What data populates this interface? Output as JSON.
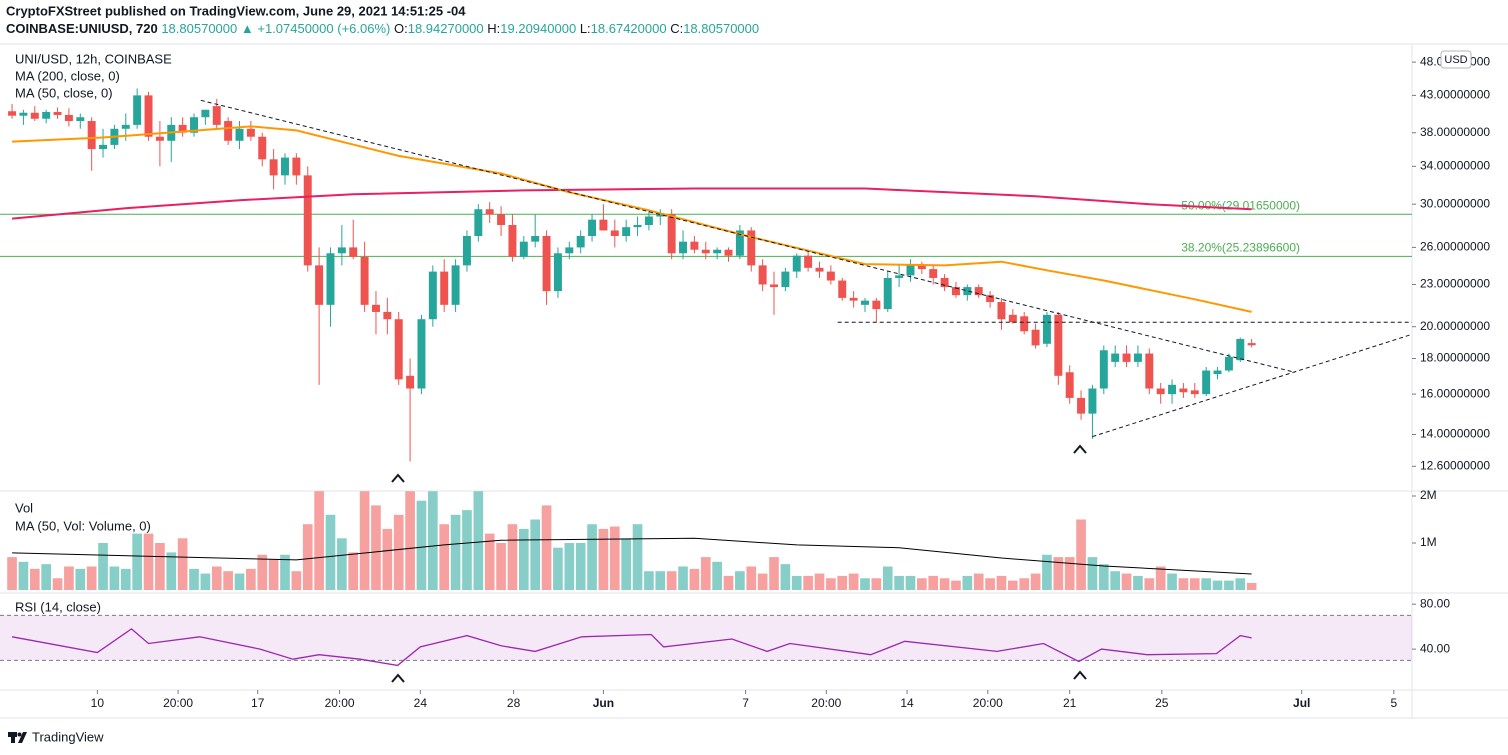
{
  "header": {
    "publisher": "CryptoFXStreet published on TradingView.com, June 29, 2021 14:51:25 -04",
    "symbol": "COINBASE:UNIUSD, 720",
    "last": "18.80570000",
    "change": "▲ +1.07450000 (+6.06%)",
    "ohlc": [
      {
        "label": "O:",
        "value": "18.94270000"
      },
      {
        "label": "H:",
        "value": "19.20940000"
      },
      {
        "label": "L:",
        "value": "18.67420000"
      },
      {
        "label": "C:",
        "value": "18.80570000"
      }
    ]
  },
  "footer": {
    "brand": "TradingView"
  },
  "chart_data": [
    {
      "type": "candlestick",
      "title": "UNI/USD, 12h, COINBASE",
      "currency": "USD",
      "log_scale": true,
      "up_color": "#26a69a",
      "down_color": "#ef5350",
      "xlim": [
        -1.06,
        123.1
      ],
      "ylim": [
        11.65,
        50.8
      ],
      "yticks": [
        {
          "value": 48,
          "label": "48.00000000"
        },
        {
          "value": 43,
          "label": "43.00000000"
        },
        {
          "value": 38,
          "label": "38.00000000"
        },
        {
          "value": 34,
          "label": "34.00000000"
        },
        {
          "value": 30,
          "label": "30.00000000"
        },
        {
          "value": 26,
          "label": "26.00000000"
        },
        {
          "value": 23,
          "label": "23.00000000"
        },
        {
          "value": 20,
          "label": "20.00000000"
        },
        {
          "value": 18,
          "label": "18.00000000"
        },
        {
          "value": 16,
          "label": "16.00000000"
        },
        {
          "value": 14,
          "label": "14.00000000"
        },
        {
          "value": 12.6,
          "label": "12.60000000"
        }
      ],
      "open": [
        40.8,
        40.2,
        40.6,
        39.8,
        40.7,
        40.3,
        39.5,
        39.5,
        36.0,
        36.5,
        38.5,
        39.0,
        43.0,
        37.5,
        37.0,
        39.0,
        38.0,
        40.0,
        41.5,
        39.5,
        37.0,
        38.5,
        37.5,
        34.8,
        33.0,
        35.0,
        33.0,
        24.5,
        21.5,
        25.5,
        26.0,
        25.2,
        21.5,
        21.0,
        20.5,
        17.0,
        16.3,
        20.5,
        24.0,
        21.5,
        24.5,
        27.0,
        29.5,
        29.0,
        28.0,
        25.2,
        26.5,
        27.0,
        22.5,
        25.5,
        26.0,
        27.0,
        28.5,
        27.5,
        27.0,
        27.8,
        28.0,
        28.8,
        29.0,
        25.5,
        26.5,
        25.8,
        25.5,
        25.8,
        25.3,
        27.5,
        24.5,
        23.0,
        22.8,
        24.0,
        25.3,
        24.3,
        24.0,
        23.3,
        22.0,
        21.5,
        21.8,
        21.2,
        23.5,
        23.7,
        24.5,
        24.2,
        23.5,
        22.8,
        22.2,
        22.8,
        22.2,
        21.7,
        20.8,
        20.7,
        19.8,
        18.9,
        20.8,
        17.2,
        15.8,
        15.0,
        16.3,
        17.8,
        18.3,
        17.8,
        18.3,
        16.3,
        16.0,
        16.3,
        16.2,
        16.0,
        17.1,
        17.3,
        17.9,
        18.9427
      ],
      "high": [
        41.8,
        41.0,
        41.5,
        41.0,
        41.3,
        41.2,
        40.5,
        40.0,
        38.5,
        39.0,
        40.5,
        44.0,
        43.5,
        39.5,
        40.0,
        40.0,
        40.5,
        41.0,
        42.5,
        40.0,
        39.5,
        39.5,
        38.0,
        36.0,
        35.5,
        35.5,
        34.0,
        26.0,
        26.0,
        28.0,
        28.5,
        26.5,
        22.5,
        22.0,
        21.0,
        18.0,
        20.8,
        24.5,
        25.0,
        25.0,
        27.5,
        30.0,
        30.2,
        29.8,
        29.0,
        27.0,
        29.0,
        27.5,
        26.0,
        26.5,
        27.5,
        29.0,
        30.0,
        28.5,
        28.5,
        28.8,
        29.5,
        29.5,
        29.5,
        27.5,
        27.0,
        26.5,
        26.0,
        26.0,
        28.0,
        27.8,
        25.0,
        24.0,
        24.3,
        25.5,
        25.8,
        24.8,
        24.5,
        23.5,
        22.5,
        22.0,
        22.0,
        24.0,
        24.5,
        25.0,
        24.8,
        24.5,
        23.8,
        23.2,
        23.0,
        23.0,
        22.5,
        22.0,
        21.2,
        21.0,
        20.2,
        21.0,
        21.0,
        17.6,
        16.2,
        16.5,
        18.8,
        18.8,
        18.8,
        18.8,
        18.6,
        16.6,
        16.8,
        16.6,
        16.6,
        17.5,
        17.5,
        18.3,
        19.3,
        19.2094
      ],
      "low": [
        39.8,
        39.0,
        39.5,
        39.2,
        39.8,
        38.8,
        38.5,
        33.5,
        35.0,
        36.0,
        37.0,
        38.5,
        37.0,
        34.0,
        34.5,
        37.5,
        37.5,
        39.0,
        38.5,
        36.5,
        36.0,
        37.0,
        34.0,
        31.5,
        32.0,
        32.0,
        24.0,
        16.5,
        20.0,
        24.5,
        25.0,
        21.0,
        19.5,
        19.5,
        16.5,
        12.8,
        16.0,
        20.0,
        21.0,
        21.0,
        24.0,
        26.5,
        28.2,
        27.0,
        24.8,
        25.0,
        26.0,
        21.5,
        22.0,
        25.0,
        25.5,
        26.5,
        27.5,
        26.0,
        26.5,
        27.0,
        27.5,
        28.0,
        25.0,
        25.0,
        25.5,
        25.0,
        25.0,
        24.8,
        25.0,
        24.0,
        22.5,
        20.8,
        22.5,
        23.5,
        24.0,
        23.5,
        23.0,
        21.8,
        21.3,
        21.0,
        20.3,
        21.0,
        22.8,
        23.2,
        23.8,
        23.0,
        22.5,
        22.0,
        21.8,
        22.0,
        21.3,
        19.8,
        20.2,
        19.5,
        18.6,
        18.7,
        16.5,
        15.5,
        14.7,
        13.8,
        16.0,
        17.5,
        17.5,
        17.5,
        16.0,
        15.5,
        15.5,
        15.8,
        15.8,
        15.9,
        16.8,
        17.2,
        17.8,
        18.6742
      ],
      "close": [
        40.2,
        40.6,
        39.8,
        40.7,
        40.3,
        39.5,
        40.0,
        36.0,
        36.5,
        38.5,
        39.0,
        43.0,
        37.5,
        37.0,
        39.0,
        38.0,
        40.0,
        41.0,
        39.0,
        37.0,
        38.5,
        37.5,
        34.8,
        33.0,
        35.0,
        33.0,
        24.5,
        21.5,
        25.5,
        26.0,
        25.2,
        21.5,
        21.0,
        20.5,
        16.8,
        16.3,
        20.5,
        24.0,
        21.5,
        24.5,
        27.0,
        29.5,
        29.0,
        28.0,
        25.2,
        26.5,
        27.0,
        22.5,
        25.5,
        26.0,
        27.0,
        28.5,
        27.5,
        27.0,
        27.8,
        28.0,
        28.8,
        29.0,
        25.5,
        26.5,
        25.8,
        25.5,
        25.8,
        25.3,
        27.5,
        24.5,
        23.0,
        22.8,
        24.0,
        25.3,
        24.3,
        24.0,
        23.3,
        22.0,
        21.8,
        21.8,
        21.2,
        23.5,
        23.7,
        24.5,
        24.2,
        23.5,
        22.8,
        22.2,
        22.8,
        22.2,
        21.7,
        20.5,
        20.3,
        19.7,
        18.8,
        20.8,
        17.0,
        15.8,
        15.0,
        16.3,
        18.5,
        18.3,
        17.8,
        18.3,
        16.3,
        16.0,
        16.5,
        16.1,
        16.0,
        17.3,
        17.3,
        18.1,
        19.2,
        18.8057
      ],
      "series": [
        {
          "name": "MA (200, close, 0)",
          "color": "#e91e63",
          "x": [
            0,
            10,
            20,
            30,
            45,
            60,
            75,
            90,
            100,
            109
          ],
          "values": [
            28.6,
            29.6,
            30.4,
            31.0,
            31.4,
            31.6,
            31.6,
            30.8,
            30.0,
            29.5
          ]
        },
        {
          "name": "MA (50, close, 0)",
          "color": "#ff9800",
          "x": [
            0,
            8,
            21,
            25,
            34,
            43,
            49,
            56,
            65,
            75,
            82,
            87,
            91,
            96,
            104,
            109
          ],
          "values": [
            36.9,
            37.4,
            38.8,
            38.3,
            35.2,
            33.2,
            31.2,
            29.4,
            26.9,
            24.6,
            24.5,
            24.8,
            24.1,
            23.3,
            21.9,
            21.0
          ]
        }
      ],
      "fib_levels": [
        {
          "label": "50.00%(29.01650000)",
          "value": 29.0165
        },
        {
          "label": "38.20%(25.23896600)",
          "value": 25.238966
        }
      ],
      "fib_color": "#4caf50",
      "trendlines": [
        {
          "x": [
            16.6,
            112.8
          ],
          "values": [
            42.3,
            17.2
          ]
        },
        {
          "x": [
            95,
            123.1
          ],
          "values": [
            13.9,
            19.5
          ]
        },
        {
          "x": [
            72.6,
            123.1
          ],
          "values": [
            20.3,
            20.3
          ]
        }
      ]
    },
    {
      "type": "bar",
      "title": "Vol",
      "xlim": [
        -1.06,
        123.1
      ],
      "ylim": [
        0,
        2085000
      ],
      "yticks": [
        {
          "value": 1000000,
          "label": "1M"
        },
        {
          "value": 2000000,
          "label": "2M"
        }
      ],
      "values": [
        700000,
        600000,
        450000,
        550000,
        250000,
        500000,
        450000,
        500000,
        1000000,
        500000,
        450000,
        1200000,
        1200000,
        1000000,
        800000,
        1100000,
        450000,
        350000,
        500000,
        400000,
        350000,
        450000,
        750000,
        650000,
        750000,
        400000,
        1400000,
        2100000,
        1600000,
        1100000,
        800000,
        2100000,
        1800000,
        1300000,
        1600000,
        2100000,
        1900000,
        2100000,
        1400000,
        1600000,
        1700000,
        2100000,
        1200000,
        1000000,
        1400000,
        1300000,
        1500000,
        1800000,
        900000,
        1000000,
        1000000,
        1400000,
        1300000,
        1350000,
        1100000,
        1400000,
        400000,
        400000,
        400000,
        500000,
        450000,
        700000,
        600000,
        300000,
        400000,
        500000,
        350000,
        700000,
        550000,
        300000,
        300000,
        350000,
        250000,
        300000,
        350000,
        250000,
        250000,
        500000,
        300000,
        300000,
        250000,
        300000,
        250000,
        200000,
        300000,
        350000,
        250000,
        300000,
        200000,
        250000,
        350000,
        750000,
        700000,
        700000,
        1500000,
        700000,
        550000,
        400000,
        350000,
        300000,
        250000,
        500000,
        350000,
        250000,
        250000,
        250000,
        200000,
        200000,
        250000,
        150000
      ],
      "series": [
        {
          "name": "MA (50, Vol: Volume, 0)",
          "color": "#000000",
          "x": [
            0,
            25,
            38,
            43,
            60,
            69,
            78,
            87,
            96,
            109
          ],
          "values": [
            790000,
            640000,
            960000,
            1060000,
            1100000,
            960000,
            900000,
            680000,
            510000,
            340000
          ]
        }
      ]
    },
    {
      "type": "line",
      "title": "RSI (14, close)",
      "xlim": [
        -1.06,
        123.1
      ],
      "ylim": [
        3.6,
        87.3
      ],
      "yticks": [
        {
          "value": 80,
          "label": "80.00"
        },
        {
          "value": 40,
          "label": "40.00"
        }
      ],
      "band": [
        30,
        70
      ],
      "xticks": [
        {
          "value": 7.5,
          "label": "10"
        },
        {
          "value": 14.6,
          "label": "20:00"
        },
        {
          "value": 21.6,
          "label": "17"
        },
        {
          "value": 28.8,
          "label": "20:00"
        },
        {
          "value": 35.9,
          "label": "24"
        },
        {
          "value": 44.1,
          "label": "28"
        },
        {
          "value": 52.0,
          "label": "Jun"
        },
        {
          "value": 64.5,
          "label": "7"
        },
        {
          "value": 71.6,
          "label": "20:00"
        },
        {
          "value": 78.7,
          "label": "14"
        },
        {
          "value": 85.8,
          "label": "20:00"
        },
        {
          "value": 93.0,
          "label": "21"
        },
        {
          "value": 101.1,
          "label": "25"
        },
        {
          "value": 113.4,
          "label": "Jul"
        },
        {
          "value": 121.5,
          "label": "5"
        }
      ],
      "series": [
        {
          "name": "RSI (14, close)",
          "color": "#9c27b0",
          "x": [
            0,
            7.5,
            10.5,
            12,
            16.5,
            21.8,
            24.7,
            27,
            30.6,
            33.9,
            35.9,
            40,
            43,
            46,
            50.1,
            56.2,
            57.3,
            63.3,
            66.4,
            68.4,
            75.5,
            78.5,
            86.6,
            90.7,
            93.8,
            95.8,
            99.8,
            105.9,
            108,
            109
          ],
          "values": [
            51,
            37,
            58,
            45,
            51,
            40,
            31,
            35,
            31,
            25.5,
            42,
            52,
            43,
            38,
            51,
            53,
            42,
            49,
            38,
            45,
            35,
            47,
            38,
            45,
            29,
            40,
            35,
            36,
            52,
            50
          ]
        }
      ]
    }
  ]
}
